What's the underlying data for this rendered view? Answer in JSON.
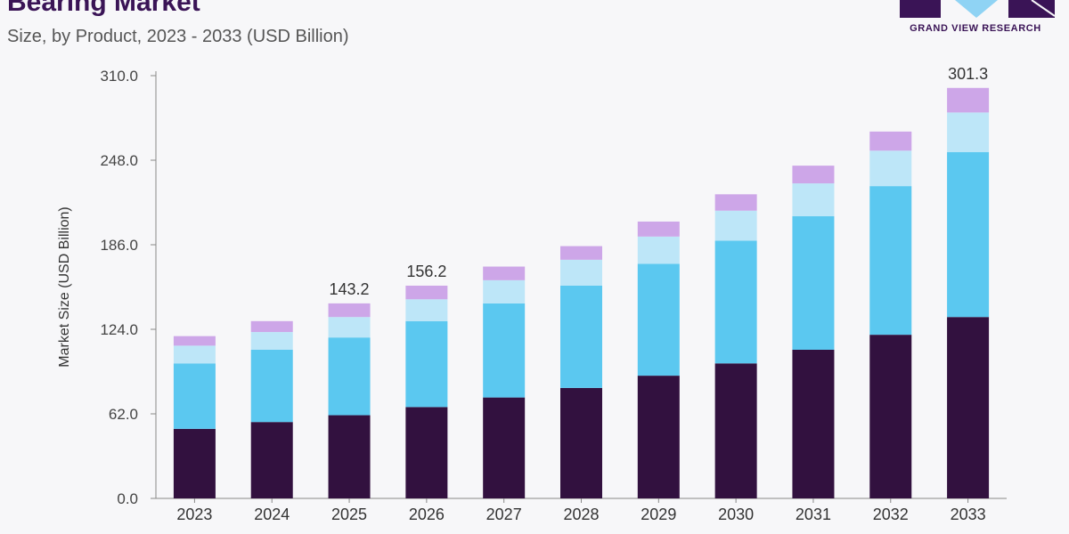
{
  "header": {
    "title": "Bearing Market",
    "subtitle": "Size, by Product, 2023 - 2033 (USD Billion)"
  },
  "brand": {
    "name": "GRAND VIEW RESEARCH",
    "logo_icon": "grand-view-research-logo",
    "color": "#3a1456",
    "accent": "#8fd3f4"
  },
  "chart_data": {
    "type": "bar",
    "stacked": true,
    "categories": [
      "2023",
      "2024",
      "2025",
      "2026",
      "2027",
      "2028",
      "2029",
      "2030",
      "2031",
      "2032",
      "2033"
    ],
    "series": [
      {
        "color": "#32113f",
        "values": [
          51,
          56,
          61,
          67,
          74,
          81,
          90,
          99,
          109,
          120,
          133
        ]
      },
      {
        "color": "#5bc8f0",
        "values": [
          48,
          53,
          57,
          63,
          69,
          75,
          82,
          90,
          98,
          109,
          121
        ]
      },
      {
        "color": "#bde6f8",
        "values": [
          13,
          13,
          15,
          16,
          17,
          19,
          20,
          22,
          24,
          26,
          29
        ]
      },
      {
        "color": "#cda6e8",
        "values": [
          7,
          8,
          10,
          10,
          10,
          10,
          11,
          12,
          13,
          14,
          18
        ]
      }
    ],
    "data_labels": [
      {
        "category": "2025",
        "text": "143.2"
      },
      {
        "category": "2026",
        "text": "156.2"
      },
      {
        "category": "2033",
        "text": "301.3"
      }
    ],
    "title": "Bearing Market",
    "xlabel": "",
    "ylabel": "Market Size (USD Billion)",
    "ylim": [
      0,
      310
    ],
    "yticks": [
      "0.0",
      "62.0",
      "124.0",
      "186.0",
      "248.0",
      "310.0"
    ],
    "grid": false,
    "legend": "none"
  }
}
